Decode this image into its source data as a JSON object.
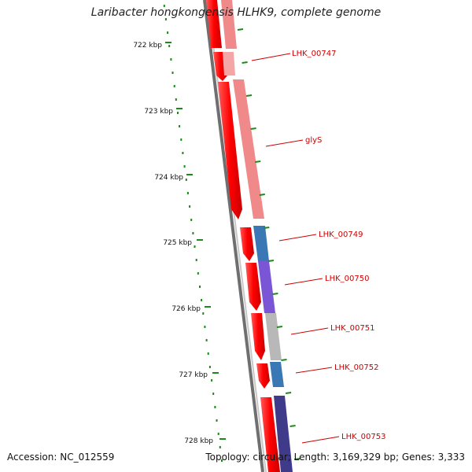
{
  "title": "Laribacter hongkongensis HLHK9, complete genome",
  "accession_text": "Accession: NC_012559",
  "summary_text": "Topology: circular; Length: 3,169,329 bp; Genes: 3,333",
  "ruler": {
    "ticks": [
      "722 kbp",
      "723 kbp",
      "724 kbp",
      "725 kbp",
      "726 kbp",
      "727 kbp",
      "728 kbp"
    ]
  },
  "colors": {
    "backbone_dark": "#6f6f6f",
    "backbone_light": "#c8c8c8",
    "forward_strand": "#ff1a1a",
    "label": "#cc0000",
    "label_line": "#cc0000",
    "gc_dots": "#1a8a1a",
    "feature_pink": "#f08a8a",
    "feature_steelblue": "#3a78b5",
    "feature_purple": "#7a55d6",
    "feature_gray": "#b8b8b8",
    "feature_navy": "#3f3a8a"
  },
  "genes": [
    {
      "name": "LHK_00747",
      "feature_color": "feature_pink"
    },
    {
      "name": "glyS",
      "feature_color": "feature_pink"
    },
    {
      "name": "LHK_00749",
      "feature_color": "feature_steelblue"
    },
    {
      "name": "LHK_00750",
      "feature_color": "feature_purple"
    },
    {
      "name": "LHK_00751",
      "feature_color": "feature_gray"
    },
    {
      "name": "LHK_00752",
      "feature_color": "feature_steelblue"
    },
    {
      "name": "LHK_00753",
      "feature_color": "feature_navy"
    }
  ]
}
